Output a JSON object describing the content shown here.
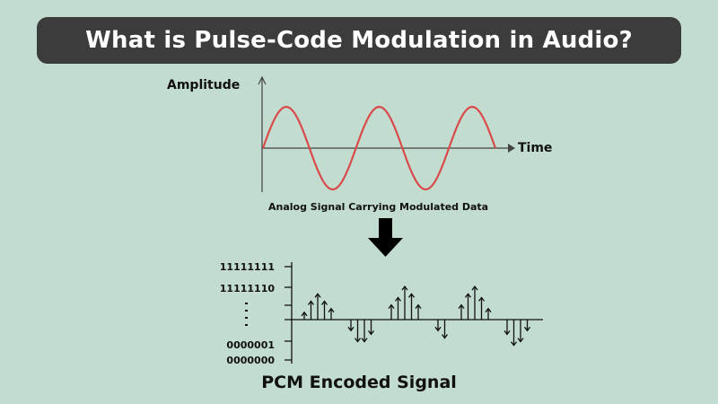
{
  "title": "What is Pulse-Code Modulation in Audio?",
  "analog_chart": {
    "ylabel": "Amplitude",
    "xlabel": "Time",
    "caption": "Analog Signal Carrying Modulated Data",
    "wave_color": "#d94b4b",
    "cycles": 2.5
  },
  "pcm_chart": {
    "title": "PCM Encoded Signal",
    "levels": [
      "11111111",
      "11111110",
      "0000001",
      "0000000"
    ],
    "samples": [
      [
        2,
        5,
        7,
        5,
        3
      ],
      [
        -3,
        -6,
        -6,
        -4
      ],
      [
        4,
        6,
        9,
        7,
        4
      ],
      [
        -3,
        -5
      ],
      [
        4,
        7,
        9,
        6,
        3
      ],
      [
        -4,
        -7,
        -6,
        -3
      ]
    ]
  },
  "colors": {
    "background": "#c2dccf",
    "banner": "#3c3c3c",
    "ink": "#111111"
  }
}
